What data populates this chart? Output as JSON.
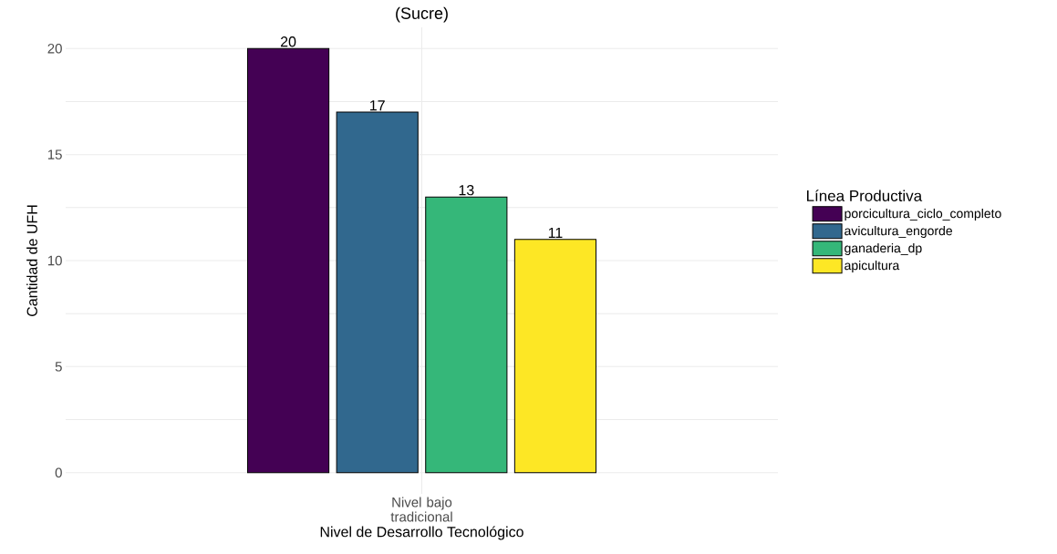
{
  "chart_data": {
    "type": "bar",
    "title": "(Sucre)",
    "xlabel": "Nivel de Desarrollo Tecnológico",
    "ylabel": "Cantidad de UFH",
    "legend_title": "Línea Productiva",
    "categories": [
      "Nivel bajo tradicional"
    ],
    "series": [
      {
        "name": "porcicultura_ciclo_completo",
        "color": "#440154",
        "values": [
          20
        ]
      },
      {
        "name": "avicultura_engorde",
        "color": "#31688e",
        "values": [
          17
        ]
      },
      {
        "name": "ganaderia_dp",
        "color": "#35b779",
        "values": [
          13
        ]
      },
      {
        "name": "apicultura",
        "color": "#fde725",
        "values": [
          11
        ]
      }
    ],
    "ylim": [
      -1,
      21
    ],
    "yticks": [
      0,
      {
        "value": 2.5,
        "label": null
      },
      5,
      {
        "value": 7.5,
        "label": null
      },
      10,
      {
        "value": 12.5,
        "label": null
      },
      15,
      {
        "value": 17.5,
        "label": null
      },
      20
    ],
    "grid": true,
    "legend": "right",
    "data_labels": true
  }
}
